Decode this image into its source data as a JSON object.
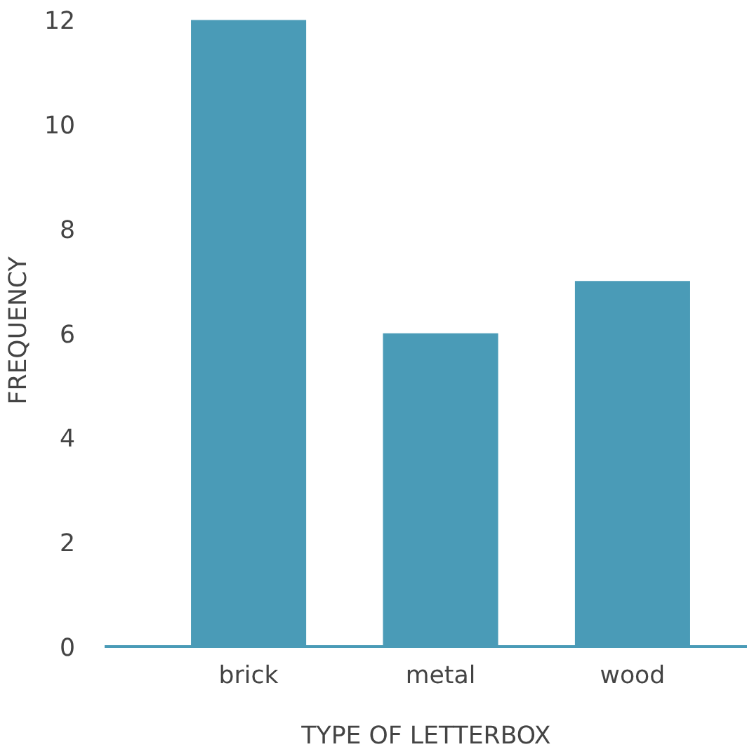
{
  "chart_data": {
    "type": "bar",
    "xlabel": "TYPE OF LETTERBOX",
    "ylabel": "FREQUENCY",
    "categories": [
      "brick",
      "metal",
      "wood"
    ],
    "values": [
      12,
      6,
      7
    ],
    "color": "#4a9bb7",
    "ylim": [
      0,
      12.1
    ],
    "yticks": [
      0,
      2,
      4,
      6,
      8,
      10,
      12
    ],
    "grid": false
  }
}
